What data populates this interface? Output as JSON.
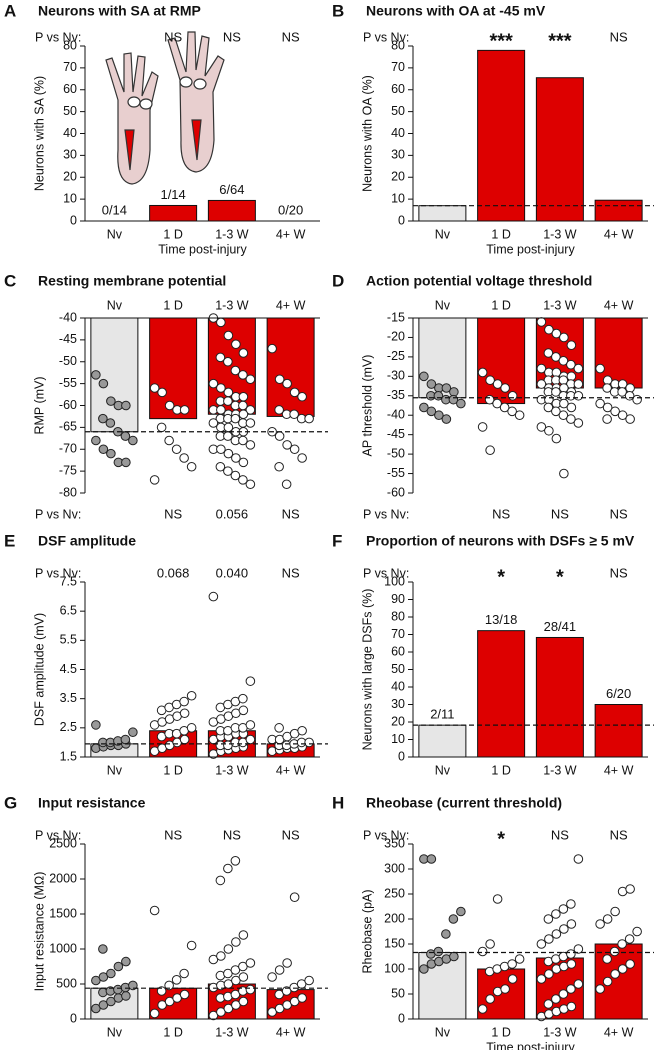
{
  "chart_data": [
    {
      "type": "bar",
      "panel": "A",
      "title": "Neurons with SA at RMP",
      "ylabel": "Neurons with SA (%)",
      "xlabel": "Time post-injury",
      "categories": [
        "Nv",
        "1 D",
        "1-3 W",
        "4+ W"
      ],
      "category_position": "bottom",
      "values": [
        0,
        7.1,
        9.4,
        0
      ],
      "value_labels": [
        "0/14",
        "1/14",
        "6/64",
        "0/20"
      ],
      "colors": [
        "#e6e6e6",
        "#dd0000",
        "#dd0000",
        "#dd0000"
      ],
      "p_label": "P vs Nv:",
      "p_position": "top",
      "significance": [
        null,
        "NS",
        "NS",
        "NS"
      ],
      "ylim": [
        0,
        80
      ],
      "yticks": [
        0,
        10,
        20,
        30,
        40,
        50,
        60,
        70,
        80
      ]
    },
    {
      "type": "bar",
      "panel": "B",
      "title": "Neurons with OA at -45 mV",
      "ylabel": "Neurons with OA (%)",
      "xlabel": "Time post-injury",
      "categories": [
        "Nv",
        "1 D",
        "1-3 W",
        "4+ W"
      ],
      "category_position": "bottom",
      "values": [
        7,
        78,
        65.5,
        9.5
      ],
      "colors": [
        "#e6e6e6",
        "#dd0000",
        "#dd0000",
        "#dd0000"
      ],
      "p_label": "P vs Nv:",
      "p_position": "top",
      "significance": [
        null,
        "***",
        "***",
        "NS"
      ],
      "reference_line": 7,
      "ylim": [
        0,
        80
      ],
      "yticks": [
        0,
        10,
        20,
        30,
        40,
        50,
        60,
        70,
        80
      ]
    },
    {
      "type": "bar",
      "panel": "C",
      "title": "Resting membrane potential",
      "ylabel": "RMP (mV)",
      "categories": [
        "Nv",
        "1 D",
        "1-3 W",
        "4+ W"
      ],
      "category_position": "top",
      "values": [
        -66,
        -63,
        -62,
        -62.5
      ],
      "colors": [
        "#e6e6e6",
        "#dd0000",
        "#dd0000",
        "#dd0000"
      ],
      "point_colors": [
        "#999999",
        "#ffffff",
        "#ffffff",
        "#ffffff"
      ],
      "points": [
        [
          -53,
          -55,
          -59,
          -60,
          -60,
          -63,
          -64,
          -66,
          -67,
          -68,
          -68,
          -70,
          -71,
          -73,
          -73
        ],
        [
          -56,
          -57,
          -60,
          -61,
          -61,
          -65,
          -68,
          -70,
          -72,
          -74,
          -77
        ],
        [
          -40,
          -41,
          -44,
          -46,
          -48,
          -49,
          -50,
          -52,
          -53,
          -54,
          -55,
          -56,
          -57,
          -58,
          -58,
          -59,
          -59,
          -60,
          -60,
          -61,
          -61,
          -61,
          -62,
          -62,
          -62,
          -63,
          -63,
          -63,
          -64,
          -64,
          -64,
          -65,
          -65,
          -66,
          -66,
          -67,
          -67,
          -68,
          -68,
          -69,
          -70,
          -70,
          -71,
          -72,
          -73,
          -74,
          -75,
          -76,
          -77,
          -78
        ],
        [
          -47,
          -54,
          -55,
          -57,
          -58,
          -61,
          -62,
          -62,
          -63,
          -63,
          -66,
          -67,
          -69,
          -70,
          -72,
          -74,
          -78
        ]
      ],
      "p_label": "P vs Nv:",
      "p_position": "bottom",
      "significance": [
        null,
        "NS",
        "0.056",
        "NS"
      ],
      "reference_line": -66,
      "ylim": [
        -80,
        -40
      ],
      "yticks": [
        -40,
        -45,
        -50,
        -55,
        -60,
        -65,
        -70,
        -75,
        -80
      ]
    },
    {
      "type": "bar",
      "panel": "D",
      "title": "Action potential voltage threshold",
      "ylabel": "AP threshold (mV)",
      "categories": [
        "Nv",
        "1 D",
        "1-3 W",
        "4+ W"
      ],
      "category_position": "top",
      "values": [
        -35.5,
        -37,
        -33,
        -33
      ],
      "colors": [
        "#e6e6e6",
        "#dd0000",
        "#dd0000",
        "#dd0000"
      ],
      "point_colors": [
        "#999999",
        "#ffffff",
        "#ffffff",
        "#ffffff"
      ],
      "points": [
        [
          -30,
          -32,
          -33,
          -33,
          -34,
          -35,
          -35,
          -36,
          -36,
          -37,
          -38,
          -39,
          -40,
          -41
        ],
        [
          -29,
          -31,
          -32,
          -33,
          -35,
          -36,
          -37,
          -38,
          -39,
          -40,
          -43,
          -49
        ],
        [
          -16,
          -18,
          -19,
          -20,
          -22,
          -24,
          -25,
          -26,
          -27,
          -28,
          -28,
          -29,
          -29,
          -30,
          -30,
          -31,
          -31,
          -31,
          -32,
          -32,
          -32,
          -33,
          -33,
          -33,
          -34,
          -34,
          -34,
          -35,
          -35,
          -35,
          -36,
          -36,
          -37,
          -37,
          -38,
          -38,
          -39,
          -40,
          -41,
          -42,
          -43,
          -44,
          -46,
          -55
        ],
        [
          -28,
          -31,
          -32,
          -32,
          -33,
          -33,
          -34,
          -34,
          -35,
          -36,
          -37,
          -38,
          -39,
          -40,
          -41,
          -41
        ]
      ],
      "p_label": "P vs Nv:",
      "p_position": "bottom",
      "significance": [
        null,
        "NS",
        "NS",
        "NS"
      ],
      "reference_line": -35.5,
      "ylim": [
        -60,
        -15
      ],
      "yticks": [
        -15,
        -20,
        -25,
        -30,
        -35,
        -40,
        -45,
        -50,
        -55,
        -60
      ]
    },
    {
      "type": "bar",
      "panel": "E",
      "title": "DSF amplitude",
      "ylabel": "DSF amplitude (mV)",
      "categories": [
        "Nv",
        "1 D",
        "1-3 W",
        "4+ W"
      ],
      "category_position": "bottom",
      "values": [
        1.95,
        2.4,
        2.4,
        1.95
      ],
      "colors": [
        "#e6e6e6",
        "#dd0000",
        "#dd0000",
        "#dd0000"
      ],
      "point_colors": [
        "#999999",
        "#ffffff",
        "#ffffff",
        "#ffffff"
      ],
      "points": [
        [
          1.8,
          1.85,
          1.9,
          1.9,
          1.95,
          2.0,
          2.0,
          2.05,
          2.1,
          2.35,
          2.6
        ],
        [
          1.7,
          1.8,
          1.9,
          2.0,
          2.1,
          2.2,
          2.3,
          2.3,
          2.4,
          2.5,
          2.6,
          2.7,
          2.8,
          2.9,
          3.0,
          3.1,
          3.2,
          3.3,
          3.4,
          3.6
        ],
        [
          1.6,
          1.7,
          1.75,
          1.8,
          1.85,
          1.9,
          1.9,
          2.0,
          2.0,
          2.1,
          2.1,
          2.2,
          2.2,
          2.3,
          2.3,
          2.4,
          2.4,
          2.5,
          2.5,
          2.6,
          2.7,
          2.8,
          2.9,
          3.0,
          3.1,
          3.2,
          3.3,
          3.4,
          3.5,
          4.1,
          7.0
        ],
        [
          1.7,
          1.75,
          1.8,
          1.8,
          1.85,
          1.9,
          1.9,
          1.95,
          2.0,
          2.0,
          2.1,
          2.1,
          2.2,
          2.3,
          2.4,
          2.5
        ]
      ],
      "p_label": "P vs Nv:",
      "p_position": "top",
      "significance": [
        null,
        "0.068",
        "0.040",
        "NS"
      ],
      "reference_line": 1.95,
      "ylim": [
        1.5,
        7.5
      ],
      "yticks": [
        1.5,
        2.5,
        3.5,
        4.5,
        5.5,
        6.5,
        7.5
      ]
    },
    {
      "type": "bar",
      "panel": "F",
      "title": "Proportion of neurons with DSFs ≥ 5 mV",
      "ylabel": "Neurons with large DSFs (%)",
      "categories": [
        "Nv",
        "1 D",
        "1-3 W",
        "4+ W"
      ],
      "category_position": "bottom",
      "values": [
        18.2,
        72.2,
        68.3,
        30
      ],
      "value_labels": [
        "2/11",
        "13/18",
        "28/41",
        "6/20"
      ],
      "colors": [
        "#e6e6e6",
        "#dd0000",
        "#dd0000",
        "#dd0000"
      ],
      "p_label": "P vs Nv:",
      "p_position": "top",
      "significance": [
        null,
        "*",
        "*",
        "NS"
      ],
      "reference_line": 18.2,
      "ylim": [
        0,
        100
      ],
      "yticks": [
        0,
        10,
        20,
        30,
        40,
        50,
        60,
        70,
        80,
        90,
        100
      ]
    },
    {
      "type": "bar",
      "panel": "G",
      "title": "Input resistance",
      "ylabel": "Input resistance (MΩ)",
      "categories": [
        "Nv",
        "1 D",
        "1-3 W",
        "4+ W"
      ],
      "category_position": "bottom",
      "values": [
        440,
        440,
        500,
        420
      ],
      "colors": [
        "#e6e6e6",
        "#dd0000",
        "#dd0000",
        "#dd0000"
      ],
      "point_colors": [
        "#999999",
        "#ffffff",
        "#ffffff",
        "#ffffff"
      ],
      "points": [
        [
          150,
          200,
          250,
          300,
          330,
          380,
          400,
          420,
          450,
          480,
          550,
          600,
          650,
          750,
          820,
          1000
        ],
        [
          80,
          200,
          250,
          300,
          350,
          400,
          480,
          560,
          650,
          1050,
          1550
        ],
        [
          50,
          100,
          150,
          200,
          250,
          300,
          320,
          350,
          400,
          420,
          450,
          480,
          500,
          550,
          600,
          620,
          650,
          700,
          750,
          800,
          850,
          900,
          1000,
          1100,
          1200,
          1980,
          2150,
          2260
        ],
        [
          100,
          150,
          200,
          250,
          300,
          350,
          400,
          450,
          500,
          550,
          600,
          700,
          800,
          1740
        ]
      ],
      "p_label": "P vs Nv:",
      "p_position": "top",
      "significance": [
        null,
        "NS",
        "NS",
        "NS"
      ],
      "reference_line": 440,
      "ylim": [
        0,
        2500
      ],
      "yticks": [
        0,
        500,
        1000,
        1500,
        2000,
        2500
      ]
    },
    {
      "type": "bar",
      "panel": "H",
      "title": "Rheobase (current threshold)",
      "ylabel": "Rheobase (pA)",
      "xlabel": "Time post-injury",
      "categories": [
        "Nv",
        "1 D",
        "1-3 W",
        "4+ W"
      ],
      "category_position": "bottom",
      "values": [
        133,
        100,
        122,
        150
      ],
      "colors": [
        "#e6e6e6",
        "#dd0000",
        "#dd0000",
        "#dd0000"
      ],
      "point_colors": [
        "#999999",
        "#ffffff",
        "#ffffff",
        "#ffffff"
      ],
      "points": [
        [
          100,
          110,
          115,
          120,
          125,
          130,
          135,
          170,
          200,
          215,
          320,
          320
        ],
        [
          20,
          40,
          55,
          60,
          80,
          95,
          100,
          105,
          110,
          120,
          135,
          150,
          240
        ],
        [
          5,
          10,
          15,
          20,
          25,
          30,
          40,
          50,
          60,
          70,
          80,
          90,
          100,
          105,
          110,
          115,
          120,
          125,
          130,
          140,
          150,
          160,
          170,
          180,
          190,
          200,
          210,
          220,
          230,
          320
        ],
        [
          60,
          75,
          90,
          100,
          110,
          120,
          135,
          150,
          160,
          175,
          190,
          200,
          215,
          255,
          260
        ]
      ],
      "p_label": "P vs Nv:",
      "p_position": "top",
      "significance": [
        null,
        "*",
        "NS",
        "NS"
      ],
      "reference_line": 133,
      "ylim": [
        0,
        350
      ],
      "yticks": [
        0,
        50,
        100,
        150,
        200,
        250,
        300,
        350
      ]
    }
  ]
}
